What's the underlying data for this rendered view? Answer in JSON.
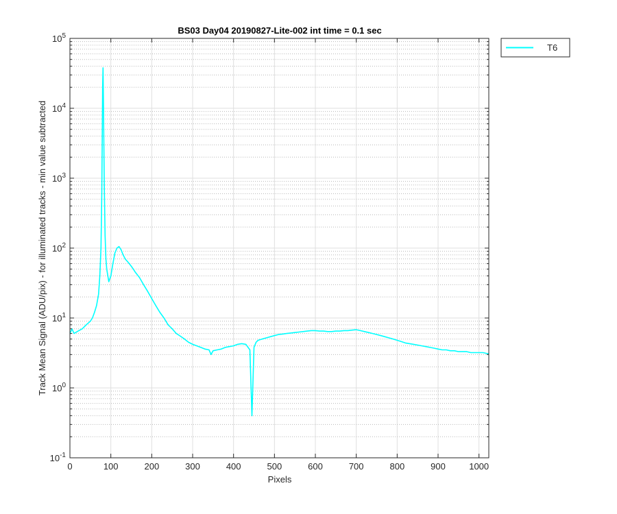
{
  "chart_data": {
    "type": "line",
    "title": "BS03 Day04 20190827-Lite-002 int time = 0.1 sec",
    "xlabel": "Pixels",
    "ylabel": "Track Mean Signal (ADU/pix) - for illuminated tracks - min value subtracted",
    "xlim": [
      0,
      1024
    ],
    "ylim": [
      0.1,
      100000
    ],
    "yscale": "log",
    "grid": "on (major and minor)",
    "legend_position": "outside-top-right",
    "x_ticks": [
      "0",
      "100",
      "200",
      "300",
      "400",
      "500",
      "600",
      "700",
      "800",
      "900",
      "1000"
    ],
    "y_ticks": [
      {
        "base": "10",
        "exp": "-1"
      },
      {
        "base": "10",
        "exp": "0"
      },
      {
        "base": "10",
        "exp": "1"
      },
      {
        "base": "10",
        "exp": "2"
      },
      {
        "base": "10",
        "exp": "3"
      },
      {
        "base": "10",
        "exp": "4"
      },
      {
        "base": "10",
        "exp": "5"
      }
    ],
    "series": [
      {
        "name": "T6",
        "color": "#00FFFF",
        "x": [
          0,
          5,
          10,
          20,
          30,
          40,
          50,
          55,
          60,
          65,
          70,
          73,
          76,
          78,
          80,
          81,
          82,
          84,
          86,
          88,
          90,
          95,
          100,
          105,
          110,
          115,
          120,
          125,
          130,
          135,
          140,
          145,
          150,
          155,
          160,
          170,
          180,
          190,
          200,
          210,
          220,
          230,
          240,
          250,
          260,
          270,
          280,
          290,
          300,
          310,
          320,
          330,
          340,
          345,
          350,
          360,
          370,
          380,
          390,
          400,
          410,
          420,
          430,
          440,
          445,
          450,
          455,
          460,
          470,
          480,
          490,
          500,
          510,
          520,
          530,
          540,
          550,
          560,
          570,
          580,
          590,
          600,
          610,
          620,
          630,
          640,
          650,
          660,
          670,
          680,
          690,
          700,
          710,
          720,
          730,
          740,
          750,
          760,
          770,
          780,
          790,
          800,
          810,
          820,
          830,
          840,
          850,
          860,
          870,
          880,
          890,
          900,
          910,
          920,
          930,
          940,
          950,
          960,
          970,
          980,
          990,
          1000,
          1010,
          1020,
          1024
        ],
        "y": [
          6,
          7,
          6,
          6.5,
          7,
          8,
          9,
          10,
          12,
          15,
          22,
          40,
          100,
          600,
          20000,
          38000,
          12000,
          800,
          150,
          70,
          50,
          33,
          40,
          60,
          85,
          100,
          105,
          95,
          80,
          70,
          65,
          60,
          55,
          50,
          45,
          38,
          30,
          24,
          19,
          15,
          12,
          10,
          8,
          7,
          6,
          5.5,
          5,
          4.5,
          4.2,
          4,
          3.8,
          3.6,
          3.5,
          3.0,
          3.4,
          3.5,
          3.6,
          3.8,
          3.9,
          4,
          4.2,
          4.3,
          4.2,
          3.5,
          0.4,
          3.8,
          4.5,
          4.8,
          5,
          5.2,
          5.4,
          5.6,
          5.8,
          5.9,
          6,
          6.1,
          6.2,
          6.3,
          6.4,
          6.5,
          6.6,
          6.6,
          6.5,
          6.5,
          6.4,
          6.4,
          6.5,
          6.5,
          6.6,
          6.6,
          6.7,
          6.8,
          6.6,
          6.4,
          6.2,
          6,
          5.8,
          5.6,
          5.4,
          5.2,
          5,
          4.8,
          4.6,
          4.4,
          4.3,
          4.2,
          4.1,
          4.0,
          3.9,
          3.8,
          3.7,
          3.6,
          3.5,
          3.5,
          3.4,
          3.4,
          3.3,
          3.3,
          3.3,
          3.2,
          3.2,
          3.2,
          3.2,
          3.1,
          3.1
        ]
      }
    ]
  }
}
